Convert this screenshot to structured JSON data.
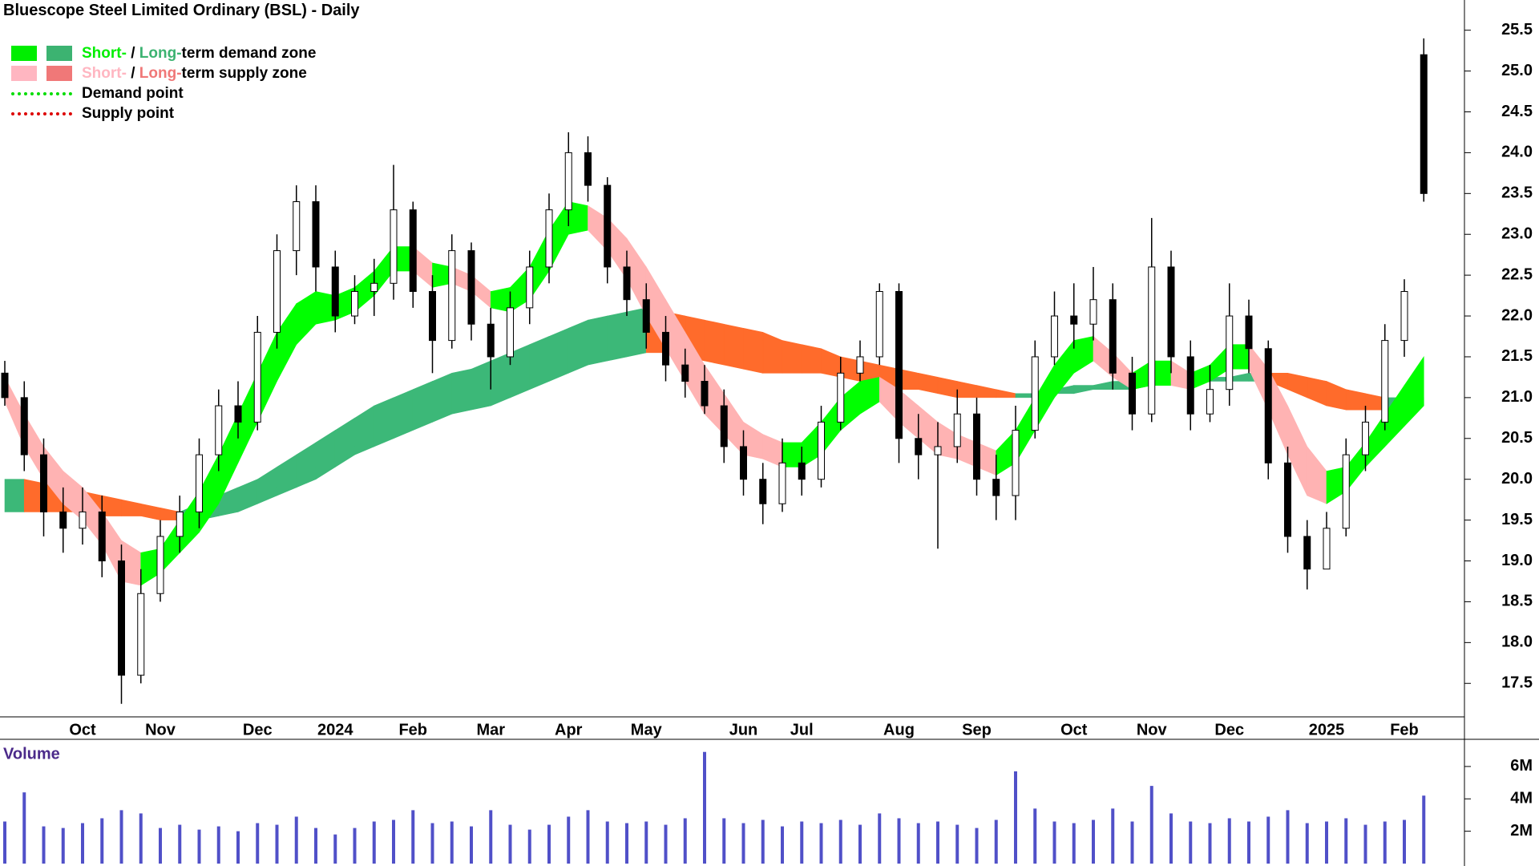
{
  "chart_data": {
    "type": "candlestick",
    "title": "Bluescope Steel Limited Ordinary (BSL) - Daily",
    "legend": [
      {
        "swatches": [
          "#00ee00",
          "#3cb371"
        ],
        "parts": [
          {
            "text": "Short-",
            "color": "#00ee00"
          },
          {
            "text": " / ",
            "color": "#000000"
          },
          {
            "text": "Long-",
            "color": "#3cb371"
          },
          {
            "text": "term demand zone",
            "color": "#000000"
          }
        ]
      },
      {
        "swatches": [
          "#ffb6c1",
          "#f07878"
        ],
        "parts": [
          {
            "text": "Short-",
            "color": "#ffb6c1"
          },
          {
            "text": " / ",
            "color": "#000000"
          },
          {
            "text": "Long-",
            "color": "#f07878"
          },
          {
            "text": "term supply zone",
            "color": "#000000"
          }
        ]
      },
      {
        "line": "#00dd00",
        "parts": [
          {
            "text": "Demand point",
            "color": "#000000"
          }
        ]
      },
      {
        "line": "#dd0000",
        "parts": [
          {
            "text": "Supply point",
            "color": "#000000"
          }
        ]
      }
    ],
    "categories": [
      null,
      null,
      null,
      null,
      "Oct",
      null,
      null,
      null,
      "Nov",
      null,
      null,
      null,
      null,
      "Dec",
      null,
      null,
      null,
      "2024",
      null,
      null,
      null,
      "Feb",
      null,
      null,
      null,
      "Mar",
      null,
      null,
      null,
      "Apr",
      null,
      null,
      null,
      "May",
      null,
      null,
      null,
      null,
      "Jun",
      null,
      null,
      "Jul",
      null,
      null,
      null,
      null,
      "Aug",
      null,
      null,
      null,
      "Sep",
      null,
      null,
      null,
      null,
      "Oct",
      null,
      null,
      null,
      "Nov",
      null,
      null,
      null,
      "Dec",
      null,
      null,
      null,
      null,
      "2025",
      null,
      null,
      null,
      "Feb",
      null
    ],
    "open": [
      21.3,
      21.0,
      20.3,
      19.6,
      19.4,
      19.6,
      19.0,
      17.6,
      18.6,
      19.3,
      19.6,
      20.3,
      20.9,
      20.7,
      21.8,
      22.8,
      23.4,
      22.6,
      22.0,
      22.3,
      22.4,
      23.3,
      22.3,
      21.7,
      22.8,
      21.9,
      21.5,
      22.1,
      22.6,
      23.3,
      24.0,
      23.6,
      22.6,
      22.2,
      21.8,
      21.4,
      21.2,
      20.9,
      20.4,
      20.0,
      19.7,
      20.2,
      20.0,
      20.7,
      21.3,
      21.5,
      22.3,
      20.5,
      20.3,
      20.4,
      20.8,
      20.0,
      19.8,
      20.6,
      21.5,
      22.0,
      21.9,
      22.2,
      21.3,
      20.8,
      22.6,
      21.5,
      20.8,
      21.1,
      22.0,
      21.6,
      20.2,
      19.3,
      18.9,
      19.4,
      20.3,
      20.7,
      21.7,
      25.2
    ],
    "high": [
      21.45,
      21.2,
      20.5,
      19.9,
      19.9,
      19.8,
      19.2,
      18.9,
      19.5,
      19.8,
      20.5,
      21.1,
      21.2,
      22.0,
      23.0,
      23.6,
      23.6,
      22.8,
      22.5,
      22.7,
      23.85,
      23.4,
      22.5,
      23.0,
      22.9,
      22.1,
      22.3,
      22.8,
      23.5,
      24.25,
      24.2,
      23.7,
      22.8,
      22.4,
      22.0,
      21.6,
      21.4,
      21.1,
      20.6,
      20.2,
      20.5,
      20.4,
      20.9,
      21.5,
      21.7,
      22.4,
      22.4,
      20.8,
      20.7,
      21.1,
      21.0,
      20.3,
      20.9,
      21.7,
      22.3,
      22.4,
      22.6,
      22.4,
      21.5,
      23.2,
      22.8,
      21.7,
      21.4,
      22.4,
      22.2,
      21.7,
      20.4,
      19.5,
      19.6,
      20.5,
      20.9,
      21.9,
      22.45,
      25.4
    ],
    "low": [
      20.9,
      20.1,
      19.3,
      19.1,
      19.2,
      18.8,
      17.25,
      17.5,
      18.5,
      19.1,
      19.4,
      20.1,
      20.5,
      20.6,
      21.6,
      22.5,
      22.3,
      21.8,
      21.9,
      22.0,
      22.2,
      22.1,
      21.3,
      21.6,
      21.7,
      21.1,
      21.4,
      21.9,
      22.4,
      23.1,
      23.4,
      22.4,
      22.0,
      21.6,
      21.2,
      21.0,
      20.8,
      20.2,
      19.8,
      19.45,
      19.6,
      19.8,
      19.9,
      20.6,
      21.2,
      21.4,
      20.2,
      20.0,
      19.15,
      20.2,
      19.8,
      19.5,
      19.5,
      20.5,
      21.4,
      21.6,
      21.7,
      21.1,
      20.6,
      20.7,
      21.3,
      20.6,
      20.7,
      20.9,
      21.3,
      20.0,
      19.1,
      18.65,
      18.9,
      19.3,
      20.1,
      20.6,
      21.5,
      23.4
    ],
    "close": [
      21.0,
      20.3,
      19.6,
      19.4,
      19.6,
      19.0,
      17.6,
      18.6,
      19.3,
      19.6,
      20.3,
      20.9,
      20.7,
      21.8,
      22.8,
      23.4,
      22.6,
      22.0,
      22.3,
      22.4,
      23.3,
      22.3,
      21.7,
      22.8,
      21.9,
      21.5,
      22.1,
      22.6,
      23.3,
      24.0,
      23.6,
      22.6,
      22.2,
      21.8,
      21.4,
      21.2,
      20.9,
      20.4,
      20.0,
      19.7,
      20.2,
      20.0,
      20.7,
      21.3,
      21.5,
      22.3,
      20.5,
      20.3,
      20.4,
      20.8,
      20.0,
      19.8,
      20.6,
      21.5,
      22.0,
      21.9,
      22.2,
      21.3,
      20.8,
      22.6,
      21.5,
      20.8,
      21.1,
      22.0,
      21.6,
      20.2,
      19.3,
      18.9,
      19.4,
      20.3,
      20.7,
      21.7,
      22.3,
      23.5
    ],
    "ylim": [
      17.09,
      25.87
    ],
    "yticks": [
      17.5,
      {
        "value": 18,
        "label": "18.0"
      },
      18.5,
      {
        "value": 19,
        "label": "19.0"
      },
      19.5,
      {
        "value": 20,
        "label": "20.0"
      },
      20.5,
      {
        "value": 21,
        "label": "21.0"
      },
      21.5,
      {
        "value": 22,
        "label": "22.0"
      },
      22.5,
      {
        "value": 23,
        "label": "23.0"
      },
      23.5,
      {
        "value": 24,
        "label": "24.0"
      },
      24.5,
      {
        "value": 25,
        "label": "25.0"
      },
      25.5
    ],
    "zones": {
      "long": {
        "demand_color": "#3cb878",
        "supply_color": "#ff6b2b",
        "upper": [
          20.0,
          20.0,
          19.95,
          19.9,
          19.85,
          19.8,
          19.75,
          19.7,
          19.65,
          19.6,
          19.7,
          19.8,
          19.9,
          20.0,
          20.15,
          20.3,
          20.45,
          20.6,
          20.75,
          20.9,
          21.0,
          21.1,
          21.2,
          21.3,
          21.35,
          21.45,
          21.55,
          21.65,
          21.75,
          21.85,
          21.95,
          22.0,
          22.05,
          22.1,
          22.05,
          22.0,
          21.95,
          21.9,
          21.85,
          21.8,
          21.7,
          21.65,
          21.6,
          21.5,
          21.45,
          21.4,
          21.35,
          21.3,
          21.25,
          21.2,
          21.15,
          21.1,
          21.05,
          21.05,
          21.1,
          21.15,
          21.15,
          21.2,
          21.2,
          21.2,
          21.2,
          21.2,
          21.25,
          21.25,
          21.3,
          21.3,
          21.3,
          21.25,
          21.2,
          21.1,
          21.05,
          21.0,
          21.0,
          21.0
        ],
        "lower": [
          19.6,
          19.6,
          19.6,
          19.6,
          19.6,
          19.55,
          19.55,
          19.55,
          19.5,
          19.5,
          19.5,
          19.55,
          19.6,
          19.7,
          19.8,
          19.9,
          20.0,
          20.15,
          20.3,
          20.4,
          20.5,
          20.6,
          20.7,
          20.8,
          20.85,
          20.9,
          21.0,
          21.1,
          21.2,
          21.3,
          21.4,
          21.45,
          21.5,
          21.55,
          21.55,
          21.5,
          21.45,
          21.4,
          21.35,
          21.3,
          21.3,
          21.3,
          21.3,
          21.25,
          21.2,
          21.15,
          21.1,
          21.1,
          21.05,
          21.0,
          21.0,
          21.0,
          21.0,
          21.0,
          21.05,
          21.05,
          21.1,
          21.1,
          21.1,
          21.15,
          21.15,
          21.15,
          21.2,
          21.2,
          21.2,
          21.2,
          21.1,
          21.0,
          20.9,
          20.85,
          20.85,
          20.85,
          20.85,
          20.9
        ]
      },
      "short": {
        "demand_color": "#00ff00",
        "supply_color": "#ffb3b3",
        "upper": [
          21.25,
          20.8,
          20.4,
          20.1,
          19.9,
          19.6,
          19.25,
          19.1,
          19.15,
          19.5,
          19.85,
          20.3,
          20.8,
          21.3,
          21.8,
          22.15,
          22.3,
          22.25,
          22.35,
          22.55,
          22.85,
          22.85,
          22.65,
          22.6,
          22.5,
          22.3,
          22.35,
          22.6,
          23.05,
          23.4,
          23.35,
          23.2,
          22.95,
          22.6,
          22.2,
          21.8,
          21.4,
          21.05,
          20.7,
          20.55,
          20.45,
          20.45,
          20.7,
          21.0,
          21.2,
          21.25,
          21.1,
          20.9,
          20.7,
          20.55,
          20.45,
          20.35,
          20.6,
          21.0,
          21.4,
          21.7,
          21.75,
          21.55,
          21.3,
          21.45,
          21.45,
          21.3,
          21.4,
          21.65,
          21.65,
          21.35,
          20.9,
          20.4,
          20.1,
          20.15,
          20.45,
          20.8,
          21.15,
          21.5
        ],
        "lower": [
          20.95,
          20.4,
          20.0,
          19.7,
          19.5,
          19.2,
          18.75,
          18.7,
          18.85,
          19.1,
          19.35,
          19.7,
          20.2,
          20.7,
          21.2,
          21.65,
          21.9,
          21.95,
          22.05,
          22.25,
          22.55,
          22.55,
          22.35,
          22.4,
          22.3,
          22.1,
          22.05,
          22.2,
          22.55,
          23.0,
          23.05,
          22.8,
          22.45,
          22.0,
          21.6,
          21.2,
          20.8,
          20.55,
          20.3,
          20.25,
          20.15,
          20.15,
          20.3,
          20.6,
          20.8,
          20.95,
          20.7,
          20.5,
          20.3,
          20.25,
          20.15,
          20.05,
          20.2,
          20.6,
          21.0,
          21.3,
          21.45,
          21.25,
          21.1,
          21.15,
          21.15,
          21.1,
          21.2,
          21.35,
          21.35,
          20.85,
          20.3,
          19.8,
          19.7,
          19.85,
          20.15,
          20.4,
          20.65,
          20.9
        ]
      }
    },
    "volume": {
      "label": "Volume",
      "color": "#5050c8",
      "values": [
        2600000,
        4400000,
        2300000,
        2200000,
        2500000,
        2800000,
        3300000,
        3100000,
        2200000,
        2400000,
        2100000,
        2300000,
        2000000,
        2500000,
        2400000,
        2900000,
        2200000,
        1800000,
        2200000,
        2600000,
        2700000,
        3300000,
        2500000,
        2600000,
        2300000,
        3300000,
        2400000,
        2100000,
        2400000,
        2900000,
        3300000,
        2600000,
        2500000,
        2600000,
        2400000,
        2800000,
        6900000,
        2800000,
        2500000,
        2700000,
        2300000,
        2600000,
        2500000,
        2700000,
        2400000,
        3100000,
        2800000,
        2500000,
        2600000,
        2400000,
        2200000,
        2700000,
        5700000,
        3400000,
        2600000,
        2500000,
        2700000,
        3400000,
        2600000,
        4800000,
        3100000,
        2600000,
        2500000,
        2800000,
        2600000,
        2900000,
        3300000,
        2500000,
        2600000,
        2800000,
        2400000,
        2600000,
        2700000,
        4200000
      ],
      "ylim": [
        0,
        7580000
      ],
      "yticks": [
        {
          "value": 2000000,
          "label": "2M"
        },
        {
          "value": 4000000,
          "label": "4M"
        },
        {
          "value": 6000000,
          "label": "6M"
        }
      ]
    }
  }
}
